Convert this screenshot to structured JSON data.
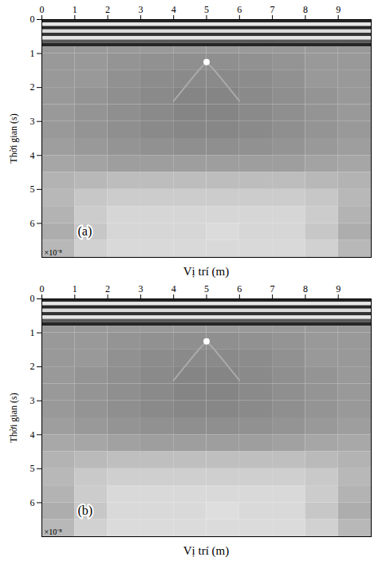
{
  "chart_data": [
    {
      "type": "heatmap",
      "panel": "(a)",
      "xlabel": "Vị trí (m)",
      "ylabel": "Thời gian (s)",
      "y_multiplier": "×10⁻⁸",
      "xlim": [
        0,
        10
      ],
      "ylim": [
        0,
        7
      ],
      "xticks": [
        0,
        1,
        2,
        3,
        4,
        5,
        6,
        7,
        8,
        9
      ],
      "yticks": [
        0,
        1,
        2,
        3,
        4,
        5,
        6
      ],
      "color_range": [
        0,
        1
      ],
      "bands": {
        "y_edges": [
          0,
          0.1,
          0.2,
          0.3,
          0.4,
          0.5,
          0.6,
          0.7,
          0.8
        ],
        "values": [
          0.15,
          0.9,
          0.15,
          0.85,
          0.2,
          0.9,
          0.35,
          0.15
        ]
      },
      "cells": {
        "x_edges": [
          0,
          1,
          2,
          3,
          4,
          5,
          6,
          7,
          8,
          9,
          10
        ],
        "y_edges": [
          0.8,
          1.0,
          1.5,
          2.0,
          2.5,
          3.0,
          3.5,
          4.0,
          4.5,
          5.0,
          5.5,
          6.0,
          6.5,
          7.0
        ],
        "values": [
          [
            0.6,
            0.6,
            0.6,
            0.6,
            0.6,
            0.6,
            0.6,
            0.6,
            0.6,
            0.6
          ],
          [
            0.6,
            0.6,
            0.58,
            0.57,
            0.56,
            0.56,
            0.57,
            0.58,
            0.6,
            0.6
          ],
          [
            0.6,
            0.6,
            0.57,
            0.55,
            0.54,
            0.54,
            0.55,
            0.57,
            0.6,
            0.6
          ],
          [
            0.6,
            0.58,
            0.56,
            0.54,
            0.52,
            0.52,
            0.54,
            0.56,
            0.58,
            0.6
          ],
          [
            0.6,
            0.58,
            0.56,
            0.54,
            0.52,
            0.52,
            0.54,
            0.56,
            0.58,
            0.6
          ],
          [
            0.6,
            0.58,
            0.56,
            0.54,
            0.53,
            0.53,
            0.54,
            0.56,
            0.58,
            0.6
          ],
          [
            0.62,
            0.6,
            0.58,
            0.57,
            0.56,
            0.56,
            0.57,
            0.58,
            0.6,
            0.62
          ],
          [
            0.65,
            0.64,
            0.62,
            0.62,
            0.62,
            0.62,
            0.62,
            0.62,
            0.64,
            0.65
          ],
          [
            0.7,
            0.72,
            0.74,
            0.74,
            0.74,
            0.74,
            0.74,
            0.74,
            0.72,
            0.7
          ],
          [
            0.72,
            0.78,
            0.8,
            0.8,
            0.8,
            0.8,
            0.8,
            0.8,
            0.78,
            0.72
          ],
          [
            0.7,
            0.8,
            0.84,
            0.84,
            0.84,
            0.84,
            0.84,
            0.84,
            0.8,
            0.7
          ],
          [
            0.68,
            0.78,
            0.84,
            0.84,
            0.84,
            0.86,
            0.84,
            0.84,
            0.78,
            0.68
          ],
          [
            0.72,
            0.82,
            0.85,
            0.85,
            0.85,
            0.85,
            0.85,
            0.85,
            0.82,
            0.72
          ]
        ]
      },
      "reflection": {
        "x": [
          4.0,
          4.5,
          4.8,
          5.0,
          5.2,
          5.5,
          6.0
        ],
        "y": [
          2.4,
          1.8,
          1.45,
          1.3,
          1.45,
          1.8,
          2.4
        ]
      },
      "apex": {
        "x": 5.0,
        "y": 1.25
      }
    },
    {
      "type": "heatmap",
      "panel": "(b)",
      "xlabel": "Vị trí (m)",
      "ylabel": "Thời gian (s)",
      "y_multiplier": "×10⁻⁸",
      "xlim": [
        0,
        10
      ],
      "ylim": [
        0,
        7
      ],
      "xticks": [
        0,
        1,
        2,
        3,
        4,
        5,
        6,
        7,
        8,
        9
      ],
      "yticks": [
        0,
        1,
        2,
        3,
        4,
        5,
        6
      ],
      "color_range": [
        0,
        1
      ],
      "bands": {
        "y_edges": [
          0,
          0.1,
          0.2,
          0.3,
          0.4,
          0.5,
          0.6,
          0.7,
          0.8
        ],
        "values": [
          0.15,
          0.9,
          0.15,
          0.85,
          0.2,
          0.9,
          0.35,
          0.15
        ]
      },
      "cells": {
        "x_edges": [
          0,
          1,
          2,
          3,
          4,
          5,
          6,
          7,
          8,
          9,
          10
        ],
        "y_edges": [
          0.8,
          1.0,
          1.5,
          2.0,
          2.5,
          3.0,
          3.5,
          4.0,
          4.5,
          5.0,
          5.5,
          6.0,
          6.5,
          7.0
        ],
        "values": [
          [
            0.6,
            0.6,
            0.6,
            0.6,
            0.6,
            0.6,
            0.6,
            0.6,
            0.6,
            0.6
          ],
          [
            0.6,
            0.6,
            0.58,
            0.57,
            0.56,
            0.56,
            0.57,
            0.58,
            0.6,
            0.6
          ],
          [
            0.6,
            0.6,
            0.57,
            0.55,
            0.54,
            0.54,
            0.55,
            0.57,
            0.6,
            0.6
          ],
          [
            0.6,
            0.58,
            0.56,
            0.54,
            0.52,
            0.52,
            0.54,
            0.56,
            0.58,
            0.6
          ],
          [
            0.6,
            0.58,
            0.56,
            0.54,
            0.52,
            0.52,
            0.54,
            0.56,
            0.58,
            0.6
          ],
          [
            0.6,
            0.58,
            0.56,
            0.54,
            0.53,
            0.53,
            0.54,
            0.56,
            0.58,
            0.6
          ],
          [
            0.62,
            0.6,
            0.58,
            0.57,
            0.56,
            0.56,
            0.57,
            0.58,
            0.6,
            0.62
          ],
          [
            0.66,
            0.65,
            0.63,
            0.62,
            0.62,
            0.62,
            0.62,
            0.63,
            0.65,
            0.66
          ],
          [
            0.7,
            0.73,
            0.75,
            0.75,
            0.75,
            0.75,
            0.75,
            0.75,
            0.73,
            0.7
          ],
          [
            0.72,
            0.79,
            0.81,
            0.81,
            0.81,
            0.81,
            0.81,
            0.81,
            0.79,
            0.72
          ],
          [
            0.7,
            0.8,
            0.85,
            0.85,
            0.85,
            0.85,
            0.85,
            0.85,
            0.8,
            0.7
          ],
          [
            0.68,
            0.78,
            0.85,
            0.85,
            0.85,
            0.87,
            0.85,
            0.85,
            0.78,
            0.68
          ],
          [
            0.72,
            0.82,
            0.86,
            0.86,
            0.86,
            0.86,
            0.86,
            0.86,
            0.82,
            0.72
          ]
        ]
      },
      "reflection": {
        "x": [
          4.0,
          4.5,
          4.8,
          5.0,
          5.2,
          5.5,
          6.0
        ],
        "y": [
          2.4,
          1.8,
          1.45,
          1.3,
          1.45,
          1.8,
          2.4
        ]
      },
      "apex": {
        "x": 5.0,
        "y": 1.25
      }
    }
  ]
}
